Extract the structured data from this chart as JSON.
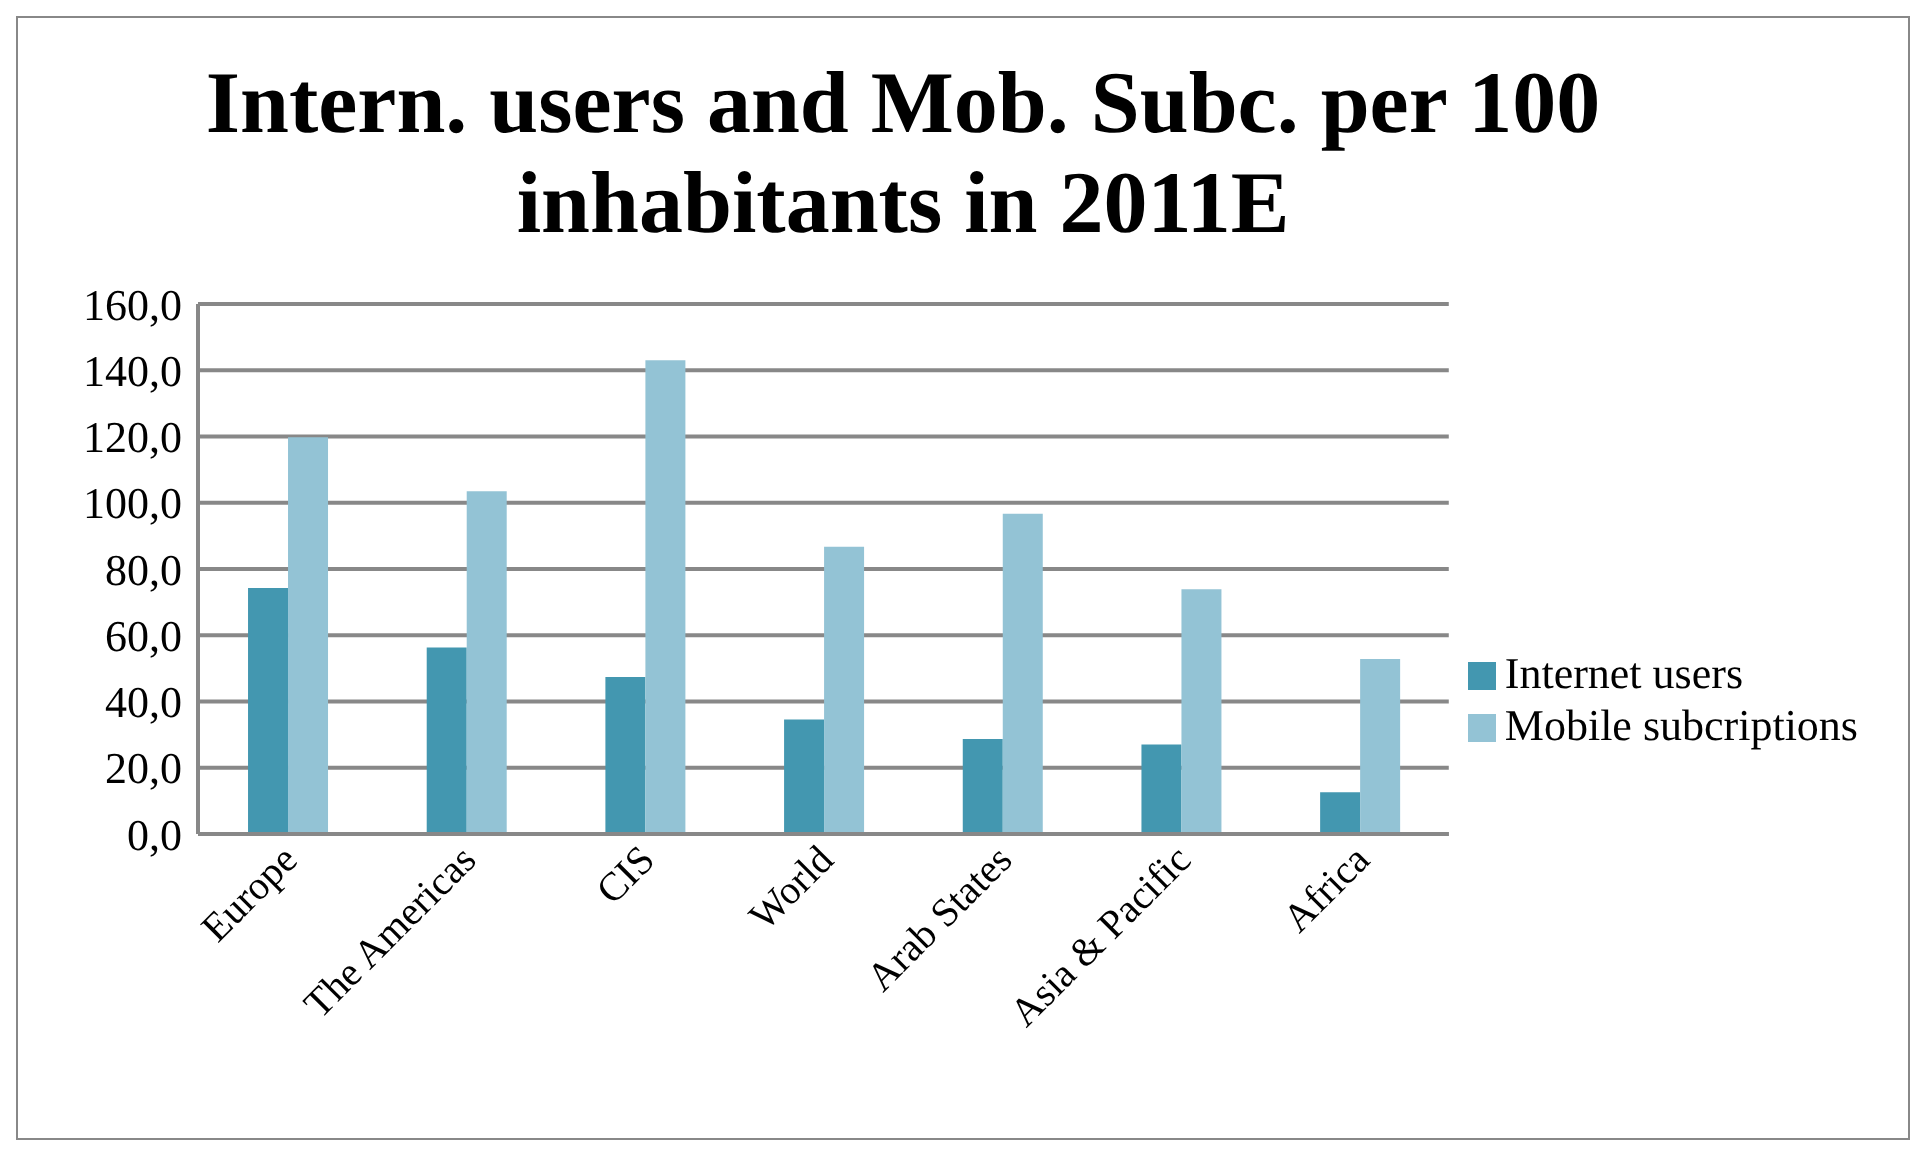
{
  "chart_data": {
    "type": "bar",
    "title": "Intern. users and Mob. Subc. per 100 inhabitants in 2011E",
    "categories": [
      "Europe",
      "The Americas",
      "CIS",
      "World",
      "Arab States",
      "Asia & Pacific",
      "Africa"
    ],
    "series": [
      {
        "name": "Internet users",
        "color": "#4397b0",
        "values": [
          74.3,
          56.3,
          47.4,
          34.6,
          28.7,
          27,
          12.6
        ]
      },
      {
        "name": "Mobile subcriptions",
        "color": "#93c3d5",
        "values": [
          119.8,
          103.5,
          143,
          86.7,
          96.7,
          73.9,
          52.8
        ]
      }
    ],
    "ylim": [
      0,
      160
    ],
    "yticks": [
      {
        "value": 0,
        "label": "0,0"
      },
      {
        "value": 20,
        "label": "20,0"
      },
      {
        "value": 40,
        "label": "40,0"
      },
      {
        "value": 60,
        "label": "60,0"
      },
      {
        "value": 80,
        "label": "80,0"
      },
      {
        "value": 100,
        "label": "100,0"
      },
      {
        "value": 120,
        "label": "120,0"
      },
      {
        "value": 140,
        "label": "140,0"
      },
      {
        "value": 160,
        "label": "160,0"
      }
    ],
    "grid": "y",
    "legend": "right"
  }
}
